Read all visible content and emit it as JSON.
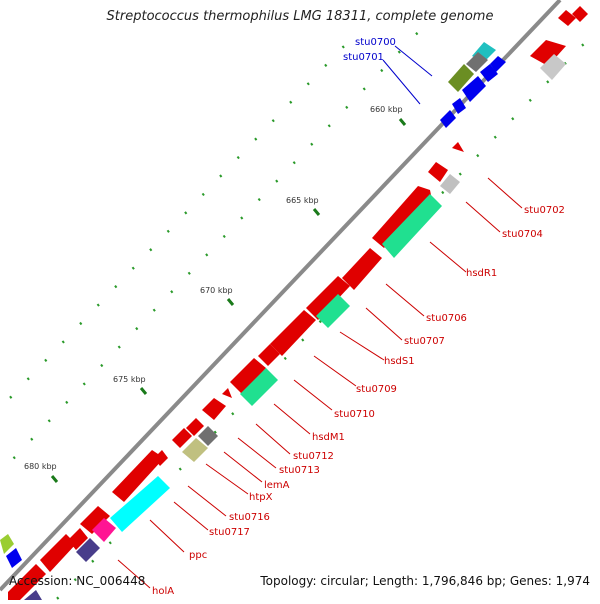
{
  "title": "Streptococcus thermophilus LMG 18311, complete genome",
  "footer": {
    "accession": "Accession: NC_006448",
    "topology": "Topology: circular; Length: 1,796,846 bp; Genes: 1,974"
  },
  "colors": {
    "backbone": "#888888",
    "tick": "#1a8a1a",
    "blue_label": "#0000cc",
    "red_label": "#cc0000"
  },
  "kbp_ticks": [
    "660 kbp",
    "665 kbp",
    "670 kbp",
    "675 kbp",
    "680 kbp"
  ],
  "gene_labels": [
    {
      "text": "stu0700",
      "color": "blue"
    },
    {
      "text": "stu0701",
      "color": "blue"
    },
    {
      "text": "stu0702",
      "color": "red"
    },
    {
      "text": "stu0704",
      "color": "red"
    },
    {
      "text": "hsdR1",
      "color": "red"
    },
    {
      "text": "stu0706",
      "color": "red"
    },
    {
      "text": "stu0707",
      "color": "red"
    },
    {
      "text": "hsdS1",
      "color": "red"
    },
    {
      "text": "stu0709",
      "color": "red"
    },
    {
      "text": "stu0710",
      "color": "red"
    },
    {
      "text": "hsdM1",
      "color": "red"
    },
    {
      "text": "stu0712",
      "color": "red"
    },
    {
      "text": "stu0713",
      "color": "red"
    },
    {
      "text": "lemA",
      "color": "red"
    },
    {
      "text": "htpX",
      "color": "red"
    },
    {
      "text": "stu0716",
      "color": "red"
    },
    {
      "text": "stu0717",
      "color": "red"
    },
    {
      "text": "ppc",
      "color": "red"
    },
    {
      "text": "holA",
      "color": "red"
    }
  ]
}
